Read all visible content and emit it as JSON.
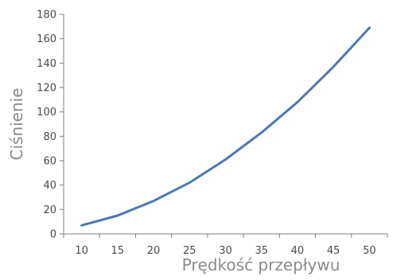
{
  "chart_data": {
    "type": "line",
    "xlabel": "Prędkość przepływu",
    "ylabel": "Ciśnienie",
    "x": [
      10,
      15,
      20,
      25,
      30,
      35,
      40,
      45,
      50
    ],
    "series": [
      {
        "values": [
          7,
          15,
          27,
          42,
          61,
          83,
          108,
          137,
          169
        ]
      }
    ],
    "ylim": [
      0,
      180
    ],
    "yticks": [
      0,
      20,
      40,
      60,
      80,
      100,
      120,
      140,
      160,
      180
    ],
    "xtick_labels": [
      "10",
      "15",
      "20",
      "25",
      "30",
      "35",
      "40",
      "45",
      "50"
    ],
    "ytick_labels": [
      "0",
      "20",
      "40",
      "60",
      "80",
      "100",
      "120",
      "140",
      "160",
      "180"
    ],
    "grid": false,
    "line_color": "#4a78b5"
  }
}
